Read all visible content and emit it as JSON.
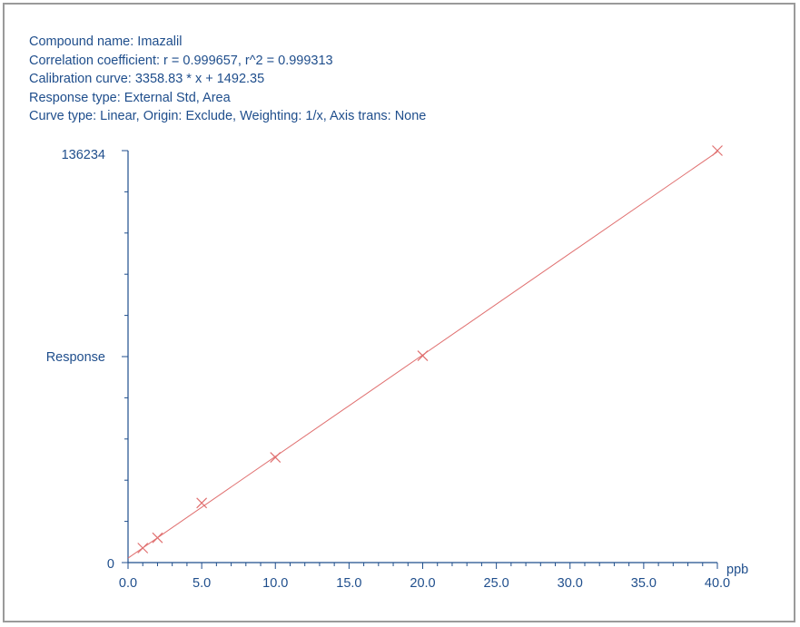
{
  "header": {
    "compound": "Compound name: Imazalil",
    "correlation": "Correlation coefficient: r = 0.999657, r^2 = 0.999313",
    "calibration": "Calibration curve: 3358.83 * x + 1492.35",
    "response_type": "Response type: External Std, Area",
    "curve_type": "Curve type: Linear, Origin: Exclude, Weighting: 1/x, Axis trans: None"
  },
  "colors": {
    "axis": "#1f4e8c",
    "curve": "#e07070",
    "point": "#e07070"
  },
  "chart_data": {
    "type": "scatter",
    "ylabel": "Response",
    "xlabel": "ppb",
    "xlim": [
      0,
      40
    ],
    "ylim": [
      0,
      136234
    ],
    "x_ticks": [
      "0.0",
      "5.0",
      "10.0",
      "15.0",
      "20.0",
      "25.0",
      "30.0",
      "35.0",
      "40.0"
    ],
    "y_tick_labels": [
      "0",
      "136234"
    ],
    "series": [
      {
        "x": [
          1,
          2,
          5,
          10,
          20,
          40
        ],
        "y": [
          4800,
          8200,
          19700,
          34800,
          68400,
          136234
        ]
      }
    ],
    "fit": {
      "slope": 3358.83,
      "intercept": 1492.35
    }
  }
}
